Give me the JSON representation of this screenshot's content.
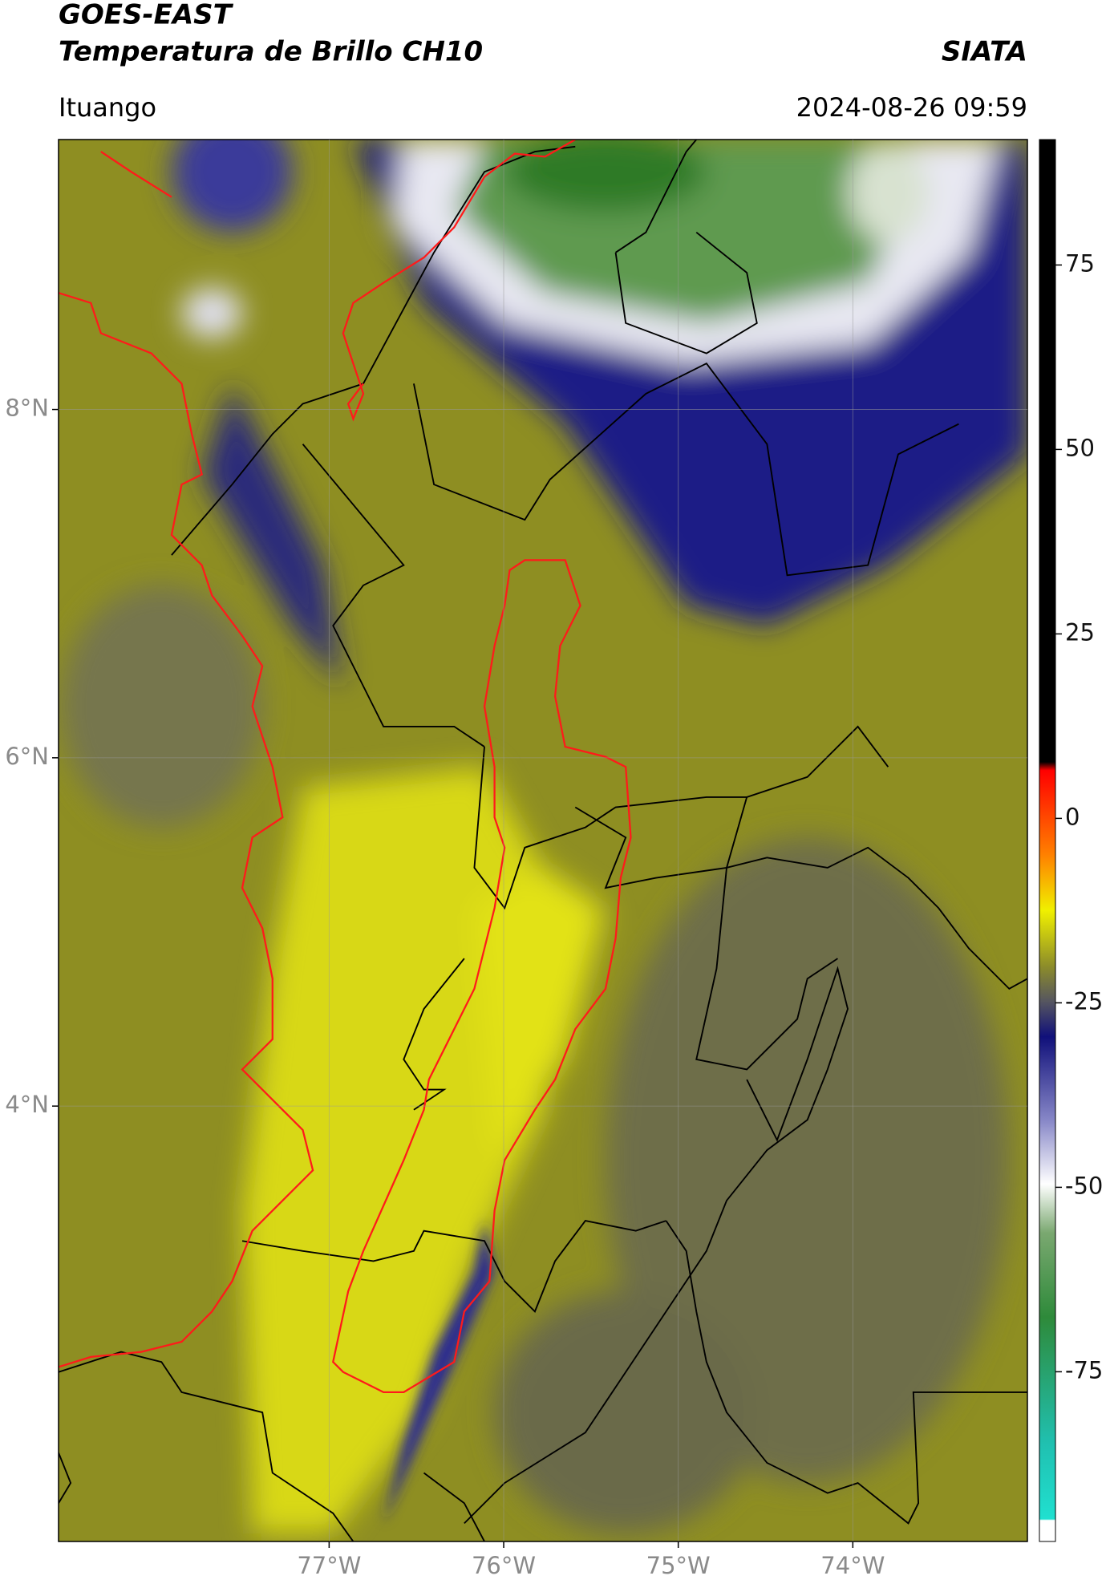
{
  "header": {
    "title_line1": "GOES-EAST",
    "title_line2": "Temperatura de Brillo CH10",
    "brand": "SIATA",
    "location": "Ituango",
    "timestamp": "2024-08-26 09:59"
  },
  "map": {
    "lat_range": [
      1.5,
      9.55
    ],
    "lon_range": [
      -78.55,
      -73.0
    ],
    "lat_ticks": [
      {
        "value": 8,
        "label": "8°N"
      },
      {
        "value": 6,
        "label": "6°N"
      },
      {
        "value": 4,
        "label": "4°N"
      }
    ],
    "lon_ticks": [
      {
        "value": -77,
        "label": "77°W"
      },
      {
        "value": -76,
        "label": "76°W"
      },
      {
        "value": -75,
        "label": "75°W"
      },
      {
        "value": -74,
        "label": "74°W"
      }
    ],
    "grid": true
  },
  "colorbar": {
    "range": [
      -98,
      92
    ],
    "ticks": [
      75,
      50,
      25,
      0,
      -25,
      -50,
      -75
    ]
  }
}
